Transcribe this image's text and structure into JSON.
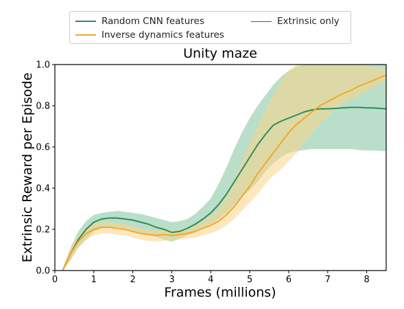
{
  "chart_data": {
    "type": "line",
    "title": "Unity maze",
    "xlabel": "Frames (millions)",
    "ylabel": "Extrinsic Reward per Episode",
    "xlim": [
      0,
      8.5
    ],
    "ylim": [
      0,
      1.0
    ],
    "xticks": [
      "0",
      "1",
      "2",
      "3",
      "4",
      "5",
      "6",
      "7",
      "8"
    ],
    "yticks": [
      "0.0",
      "0.2",
      "0.4",
      "0.6",
      "0.8",
      "1.0"
    ],
    "grid": false,
    "legend_placement": "top",
    "series": [
      {
        "name": "Random CNN features",
        "color": "#2e8b57",
        "band_color": "#7fc4a0",
        "x": [
          0.2,
          0.4,
          0.6,
          0.8,
          1.0,
          1.2,
          1.4,
          1.6,
          1.8,
          2.0,
          2.2,
          2.4,
          2.6,
          2.8,
          3.0,
          3.2,
          3.4,
          3.6,
          3.8,
          4.0,
          4.2,
          4.4,
          4.6,
          4.8,
          5.0,
          5.2,
          5.4,
          5.6,
          5.8,
          6.0,
          6.2,
          6.4,
          6.6,
          6.8,
          7.0,
          7.2,
          7.4,
          7.6,
          7.8,
          8.0,
          8.2,
          8.5
        ],
        "mean": [
          0.0,
          0.08,
          0.15,
          0.2,
          0.235,
          0.25,
          0.255,
          0.255,
          0.25,
          0.245,
          0.235,
          0.225,
          0.21,
          0.2,
          0.185,
          0.19,
          0.205,
          0.225,
          0.25,
          0.28,
          0.32,
          0.37,
          0.43,
          0.49,
          0.55,
          0.61,
          0.66,
          0.705,
          0.725,
          0.74,
          0.755,
          0.77,
          0.78,
          0.785,
          0.785,
          0.787,
          0.79,
          0.792,
          0.792,
          0.79,
          0.789,
          0.785
        ],
        "lower": [
          0.0,
          0.05,
          0.11,
          0.15,
          0.19,
          0.205,
          0.21,
          0.21,
          0.205,
          0.195,
          0.185,
          0.175,
          0.165,
          0.15,
          0.14,
          0.155,
          0.17,
          0.185,
          0.205,
          0.225,
          0.25,
          0.28,
          0.32,
          0.36,
          0.39,
          0.43,
          0.48,
          0.52,
          0.55,
          0.57,
          0.58,
          0.585,
          0.59,
          0.59,
          0.59,
          0.59,
          0.59,
          0.59,
          0.585,
          0.583,
          0.582,
          0.58
        ],
        "upper": [
          0.01,
          0.11,
          0.19,
          0.24,
          0.27,
          0.28,
          0.285,
          0.29,
          0.285,
          0.28,
          0.275,
          0.265,
          0.255,
          0.245,
          0.235,
          0.24,
          0.25,
          0.275,
          0.31,
          0.35,
          0.42,
          0.5,
          0.59,
          0.67,
          0.74,
          0.8,
          0.85,
          0.9,
          0.94,
          0.97,
          0.99,
          1.0,
          1.0,
          1.0,
          1.0,
          1.0,
          1.0,
          1.0,
          1.0,
          1.0,
          1.0,
          1.0
        ]
      },
      {
        "name": "Inverse dynamics features",
        "color": "#f5a623",
        "band_color": "#fbd38a",
        "x": [
          0.2,
          0.4,
          0.6,
          0.8,
          1.0,
          1.2,
          1.4,
          1.6,
          1.8,
          2.0,
          2.2,
          2.4,
          2.6,
          2.8,
          3.0,
          3.2,
          3.4,
          3.6,
          3.8,
          4.0,
          4.2,
          4.4,
          4.6,
          4.8,
          5.0,
          5.2,
          5.4,
          5.6,
          5.8,
          6.0,
          6.2,
          6.4,
          6.6,
          6.8,
          7.0,
          7.2,
          7.4,
          7.6,
          7.8,
          8.0,
          8.2,
          8.5
        ],
        "mean": [
          0.0,
          0.08,
          0.14,
          0.18,
          0.2,
          0.21,
          0.21,
          0.205,
          0.2,
          0.19,
          0.18,
          0.175,
          0.17,
          0.175,
          0.17,
          0.175,
          0.18,
          0.19,
          0.205,
          0.22,
          0.24,
          0.27,
          0.31,
          0.36,
          0.41,
          0.47,
          0.52,
          0.57,
          0.62,
          0.67,
          0.71,
          0.74,
          0.77,
          0.8,
          0.82,
          0.84,
          0.86,
          0.875,
          0.895,
          0.91,
          0.925,
          0.95
        ],
        "lower": [
          0.0,
          0.05,
          0.11,
          0.15,
          0.17,
          0.18,
          0.18,
          0.175,
          0.17,
          0.16,
          0.15,
          0.145,
          0.14,
          0.145,
          0.145,
          0.15,
          0.155,
          0.16,
          0.17,
          0.18,
          0.195,
          0.22,
          0.25,
          0.29,
          0.33,
          0.37,
          0.42,
          0.46,
          0.49,
          0.53,
          0.57,
          0.62,
          0.67,
          0.71,
          0.75,
          0.78,
          0.81,
          0.83,
          0.85,
          0.87,
          0.89,
          0.92
        ],
        "upper": [
          0.01,
          0.11,
          0.17,
          0.21,
          0.23,
          0.235,
          0.235,
          0.23,
          0.225,
          0.215,
          0.205,
          0.2,
          0.195,
          0.2,
          0.195,
          0.2,
          0.205,
          0.22,
          0.24,
          0.265,
          0.3,
          0.36,
          0.44,
          0.53,
          0.62,
          0.7,
          0.78,
          0.85,
          0.92,
          0.97,
          1.0,
          1.0,
          1.0,
          1.0,
          1.0,
          1.0,
          1.0,
          1.0,
          1.0,
          0.995,
          0.985,
          0.98
        ]
      },
      {
        "name": "Extrinsic only",
        "color": "#555555",
        "x": [],
        "mean": []
      }
    ]
  }
}
